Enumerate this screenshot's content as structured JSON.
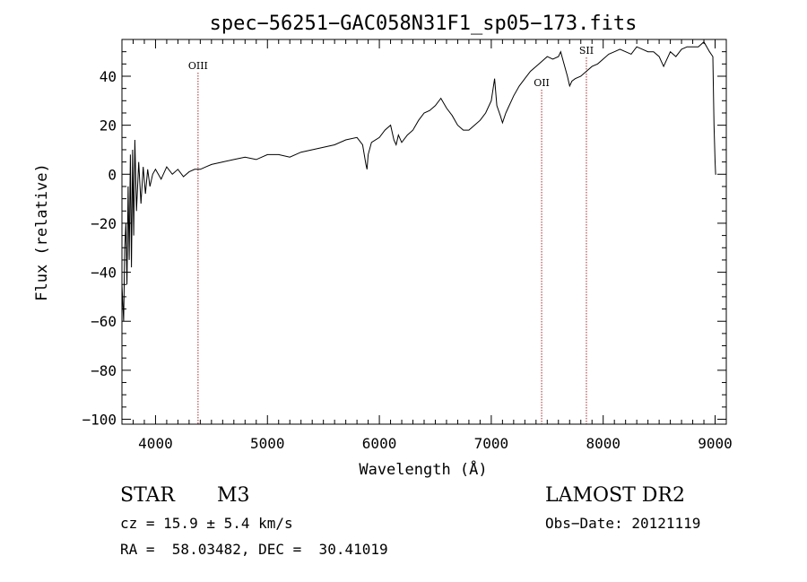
{
  "chart_data": {
    "type": "line",
    "title": "spec−56251−GAC058N31F1_sp05−173.fits",
    "xlabel": "Wavelength (Å)",
    "ylabel": "Flux (relative)",
    "xlim": [
      3700,
      9100
    ],
    "ylim": [
      -102,
      55
    ],
    "xticks": [
      4000,
      5000,
      6000,
      7000,
      8000,
      9000
    ],
    "yticks": [
      -100,
      -80,
      -60,
      -40,
      -20,
      0,
      20,
      40
    ],
    "ytick_labels": [
      "−100",
      "−80",
      "−60",
      "−40",
      "−20",
      "0",
      "20",
      "40"
    ],
    "grid": false,
    "line_color": "#000000",
    "marker_color": "#a52a2a",
    "series": [
      {
        "x": [
          3700,
          3715,
          3725,
          3735,
          3745,
          3755,
          3765,
          3775,
          3785,
          3795,
          3805,
          3815,
          3830,
          3850,
          3870,
          3890,
          3910,
          3930,
          3950,
          3975,
          4000,
          4050,
          4100,
          4150,
          4200,
          4250,
          4300,
          4350,
          4400,
          4450,
          4500,
          4600,
          4700,
          4800,
          4900,
          5000,
          5100,
          5200,
          5300,
          5400,
          5500,
          5600,
          5700,
          5800,
          5850,
          5880,
          5890,
          5900,
          5930,
          6000,
          6050,
          6100,
          6130,
          6150,
          6170,
          6200,
          6250,
          6300,
          6350,
          6400,
          6450,
          6500,
          6550,
          6600,
          6650,
          6700,
          6750,
          6800,
          6850,
          6900,
          6950,
          7000,
          7030,
          7050,
          7080,
          7100,
          7130,
          7150,
          7180,
          7200,
          7250,
          7300,
          7350,
          7400,
          7450,
          7500,
          7550,
          7600,
          7620,
          7650,
          7680,
          7700,
          7720,
          7750,
          7800,
          7850,
          7900,
          7950,
          8000,
          8050,
          8100,
          8150,
          8200,
          8250,
          8300,
          8350,
          8400,
          8450,
          8500,
          8540,
          8560,
          8600,
          8650,
          8700,
          8750,
          8800,
          8850,
          8900,
          8950,
          8980,
          8990,
          9000,
          9005,
          9010
        ],
        "y": [
          -45,
          -60,
          -30,
          -20,
          -45,
          -5,
          -35,
          8,
          -38,
          10,
          -25,
          14,
          -15,
          5,
          -12,
          3,
          -8,
          2,
          -5,
          0,
          2,
          -2,
          3,
          0,
          2,
          -1,
          1,
          2,
          2,
          3,
          4,
          5,
          6,
          7,
          6,
          8,
          8,
          7,
          9,
          10,
          11,
          12,
          14,
          15,
          12,
          4,
          2,
          8,
          13,
          15,
          18,
          20,
          14,
          12,
          16,
          13,
          16,
          18,
          22,
          25,
          26,
          28,
          31,
          27,
          24,
          20,
          18,
          18,
          20,
          22,
          25,
          30,
          39,
          28,
          24,
          21,
          25,
          27,
          30,
          32,
          36,
          39,
          42,
          44,
          46,
          48,
          47,
          48,
          50,
          45,
          40,
          36,
          38,
          39,
          40,
          42,
          44,
          45,
          47,
          49,
          50,
          51,
          50,
          49,
          52,
          51,
          50,
          50,
          48,
          44,
          46,
          50,
          48,
          51,
          52,
          52,
          52,
          54,
          50,
          48,
          20,
          5,
          0,
          0
        ]
      }
    ],
    "annotations": [
      {
        "label": "OIII",
        "x": 4380
      },
      {
        "label": "OII",
        "x": 7450
      },
      {
        "label": "SII",
        "x": 7850
      }
    ]
  },
  "info": {
    "class_label": "STAR",
    "subclass_label": "M3",
    "survey_label": "LAMOST DR2",
    "cz_text": "cz = 15.9 ± 5.4 km/s",
    "obs_date_text": "Obs−Date: 20121119",
    "radec_text": "RA =  58.03482, DEC =  30.41019"
  }
}
